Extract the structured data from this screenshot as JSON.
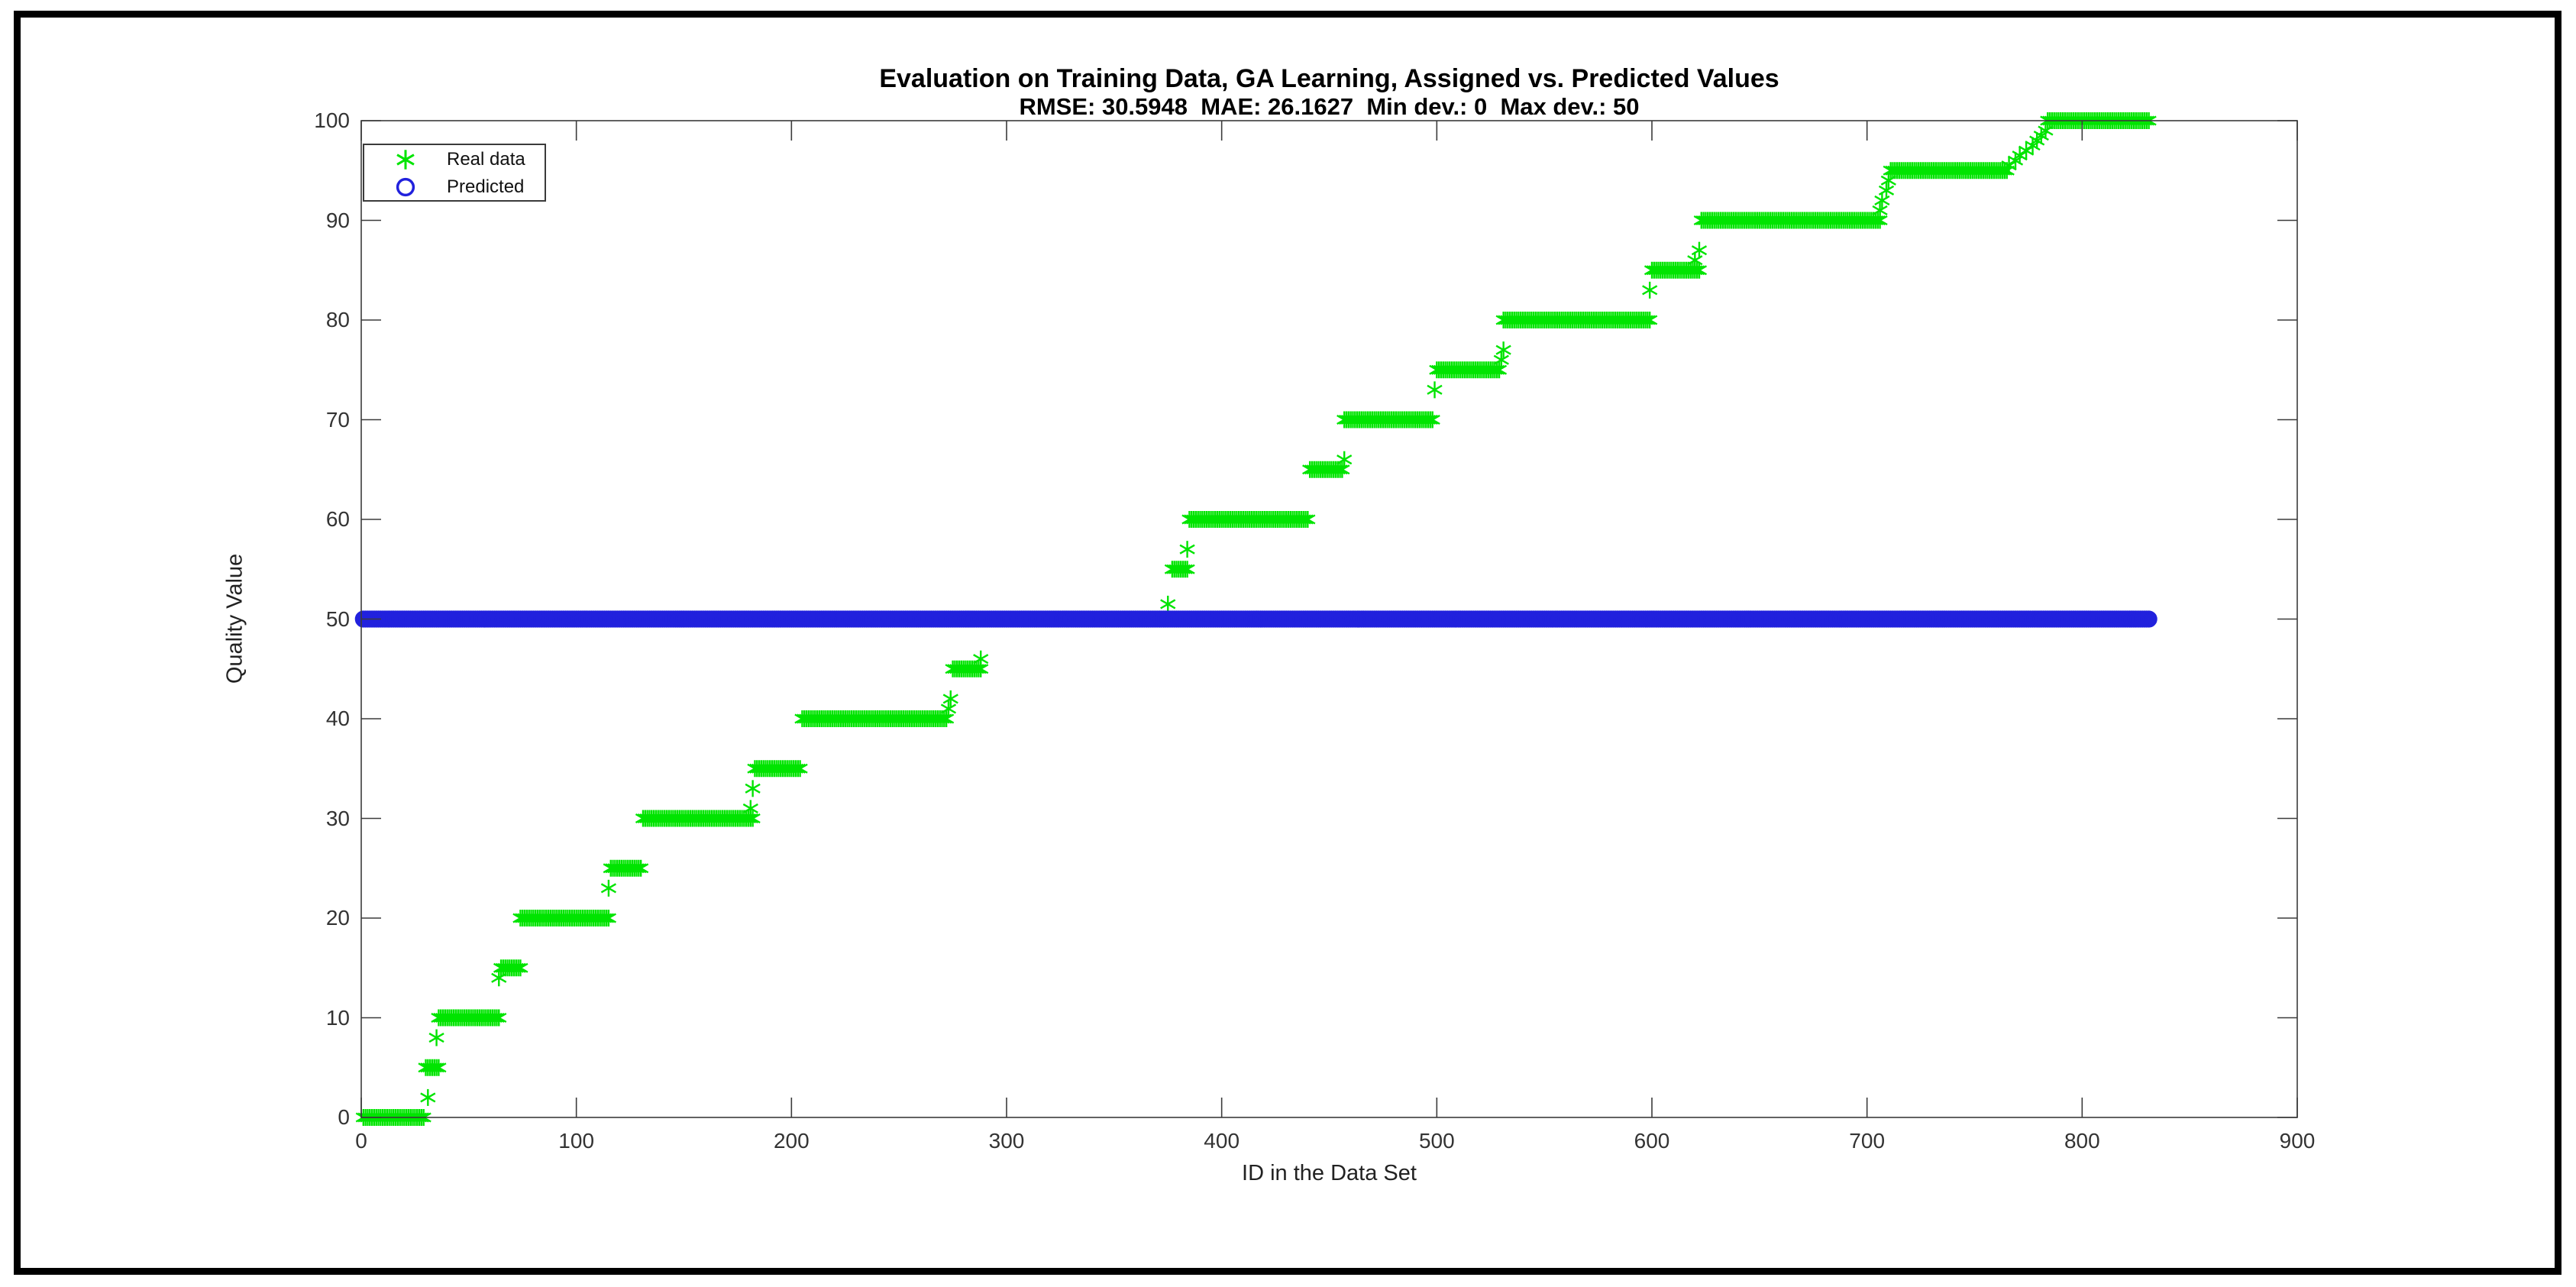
{
  "figure": {
    "background": "#ffffff",
    "border_color": "#000000",
    "axis_color": "#3b3b3b",
    "text_color": "#222222"
  },
  "chart_data": {
    "type": "scatter",
    "title": "Evaluation on Training Data, GA Learning, Assigned vs. Predicted Values",
    "subtitle": "RMSE: 30.5948  MAE: 26.1627  Min dev.: 0  Max dev.: 50",
    "stats": {
      "rmse": "30.5948",
      "mae": "26.1627",
      "min_dev": "0",
      "max_dev": "50"
    },
    "xlabel": "ID in the Data Set",
    "ylabel": "Quality Value",
    "xlim": [
      0,
      900
    ],
    "ylim": [
      0,
      100
    ],
    "xticks": [
      0,
      100,
      200,
      300,
      400,
      500,
      600,
      700,
      800,
      900
    ],
    "yticks": [
      0,
      10,
      20,
      30,
      40,
      50,
      60,
      70,
      80,
      90,
      100
    ],
    "grid": false,
    "legend": {
      "position": "top-left",
      "entries": [
        {
          "label": "Real data",
          "marker": "asterisk",
          "color": "#00e400"
        },
        {
          "label": "Predicted",
          "marker": "circle",
          "color": "#2121dd"
        }
      ]
    },
    "series": [
      {
        "name": "Real data",
        "marker": "asterisk",
        "color": "#00e400",
        "runs": [
          {
            "from": 1,
            "to": 29,
            "value": 0
          },
          {
            "from": 30,
            "to": 36,
            "value": 5
          },
          {
            "from": 36,
            "to": 64,
            "value": 10
          },
          {
            "from": 65,
            "to": 74,
            "value": 15
          },
          {
            "from": 74,
            "to": 115,
            "value": 20
          },
          {
            "from": 116,
            "to": 130,
            "value": 25
          },
          {
            "from": 131,
            "to": 182,
            "value": 30
          },
          {
            "from": 183,
            "to": 204,
            "value": 35
          },
          {
            "from": 205,
            "to": 272,
            "value": 40
          },
          {
            "from": 275,
            "to": 288,
            "value": 45
          },
          {
            "from": 289,
            "to": 376,
            "value": 50
          },
          {
            "from": 377,
            "to": 384,
            "value": 55
          },
          {
            "from": 385,
            "to": 440,
            "value": 60
          },
          {
            "from": 441,
            "to": 456,
            "value": 65
          },
          {
            "from": 457,
            "to": 498,
            "value": 70
          },
          {
            "from": 500,
            "to": 529,
            "value": 75
          },
          {
            "from": 531,
            "to": 599,
            "value": 80
          },
          {
            "from": 600,
            "to": 622,
            "value": 85
          },
          {
            "from": 623,
            "to": 706,
            "value": 90
          },
          {
            "from": 711,
            "to": 765,
            "value": 95
          },
          {
            "from": 784,
            "to": 831,
            "value": 100
          }
        ],
        "extra_points": [
          [
            31,
            2
          ],
          [
            35,
            8
          ],
          [
            64,
            14
          ],
          [
            115,
            23
          ],
          [
            181,
            31
          ],
          [
            182,
            33
          ],
          [
            273,
            41
          ],
          [
            274,
            42
          ],
          [
            288,
            46
          ],
          [
            375,
            51.5
          ],
          [
            384,
            57
          ],
          [
            457,
            66
          ],
          [
            499,
            73
          ],
          [
            530,
            76
          ],
          [
            531,
            77
          ],
          [
            599,
            83
          ],
          [
            620,
            86
          ],
          [
            622,
            87
          ],
          [
            706,
            91
          ],
          [
            707,
            92
          ],
          [
            709,
            93
          ],
          [
            710,
            94
          ],
          [
            766,
            95.5
          ],
          [
            769,
            96
          ],
          [
            771,
            96.5
          ],
          [
            774,
            97
          ],
          [
            777,
            97.5
          ],
          [
            779,
            98
          ],
          [
            781,
            98.5
          ],
          [
            783,
            99
          ]
        ]
      },
      {
        "name": "Predicted",
        "marker": "circle",
        "color": "#2121dd",
        "runs": [
          {
            "from": 1,
            "to": 831,
            "value": 50
          }
        ],
        "extra_points": []
      }
    ]
  }
}
